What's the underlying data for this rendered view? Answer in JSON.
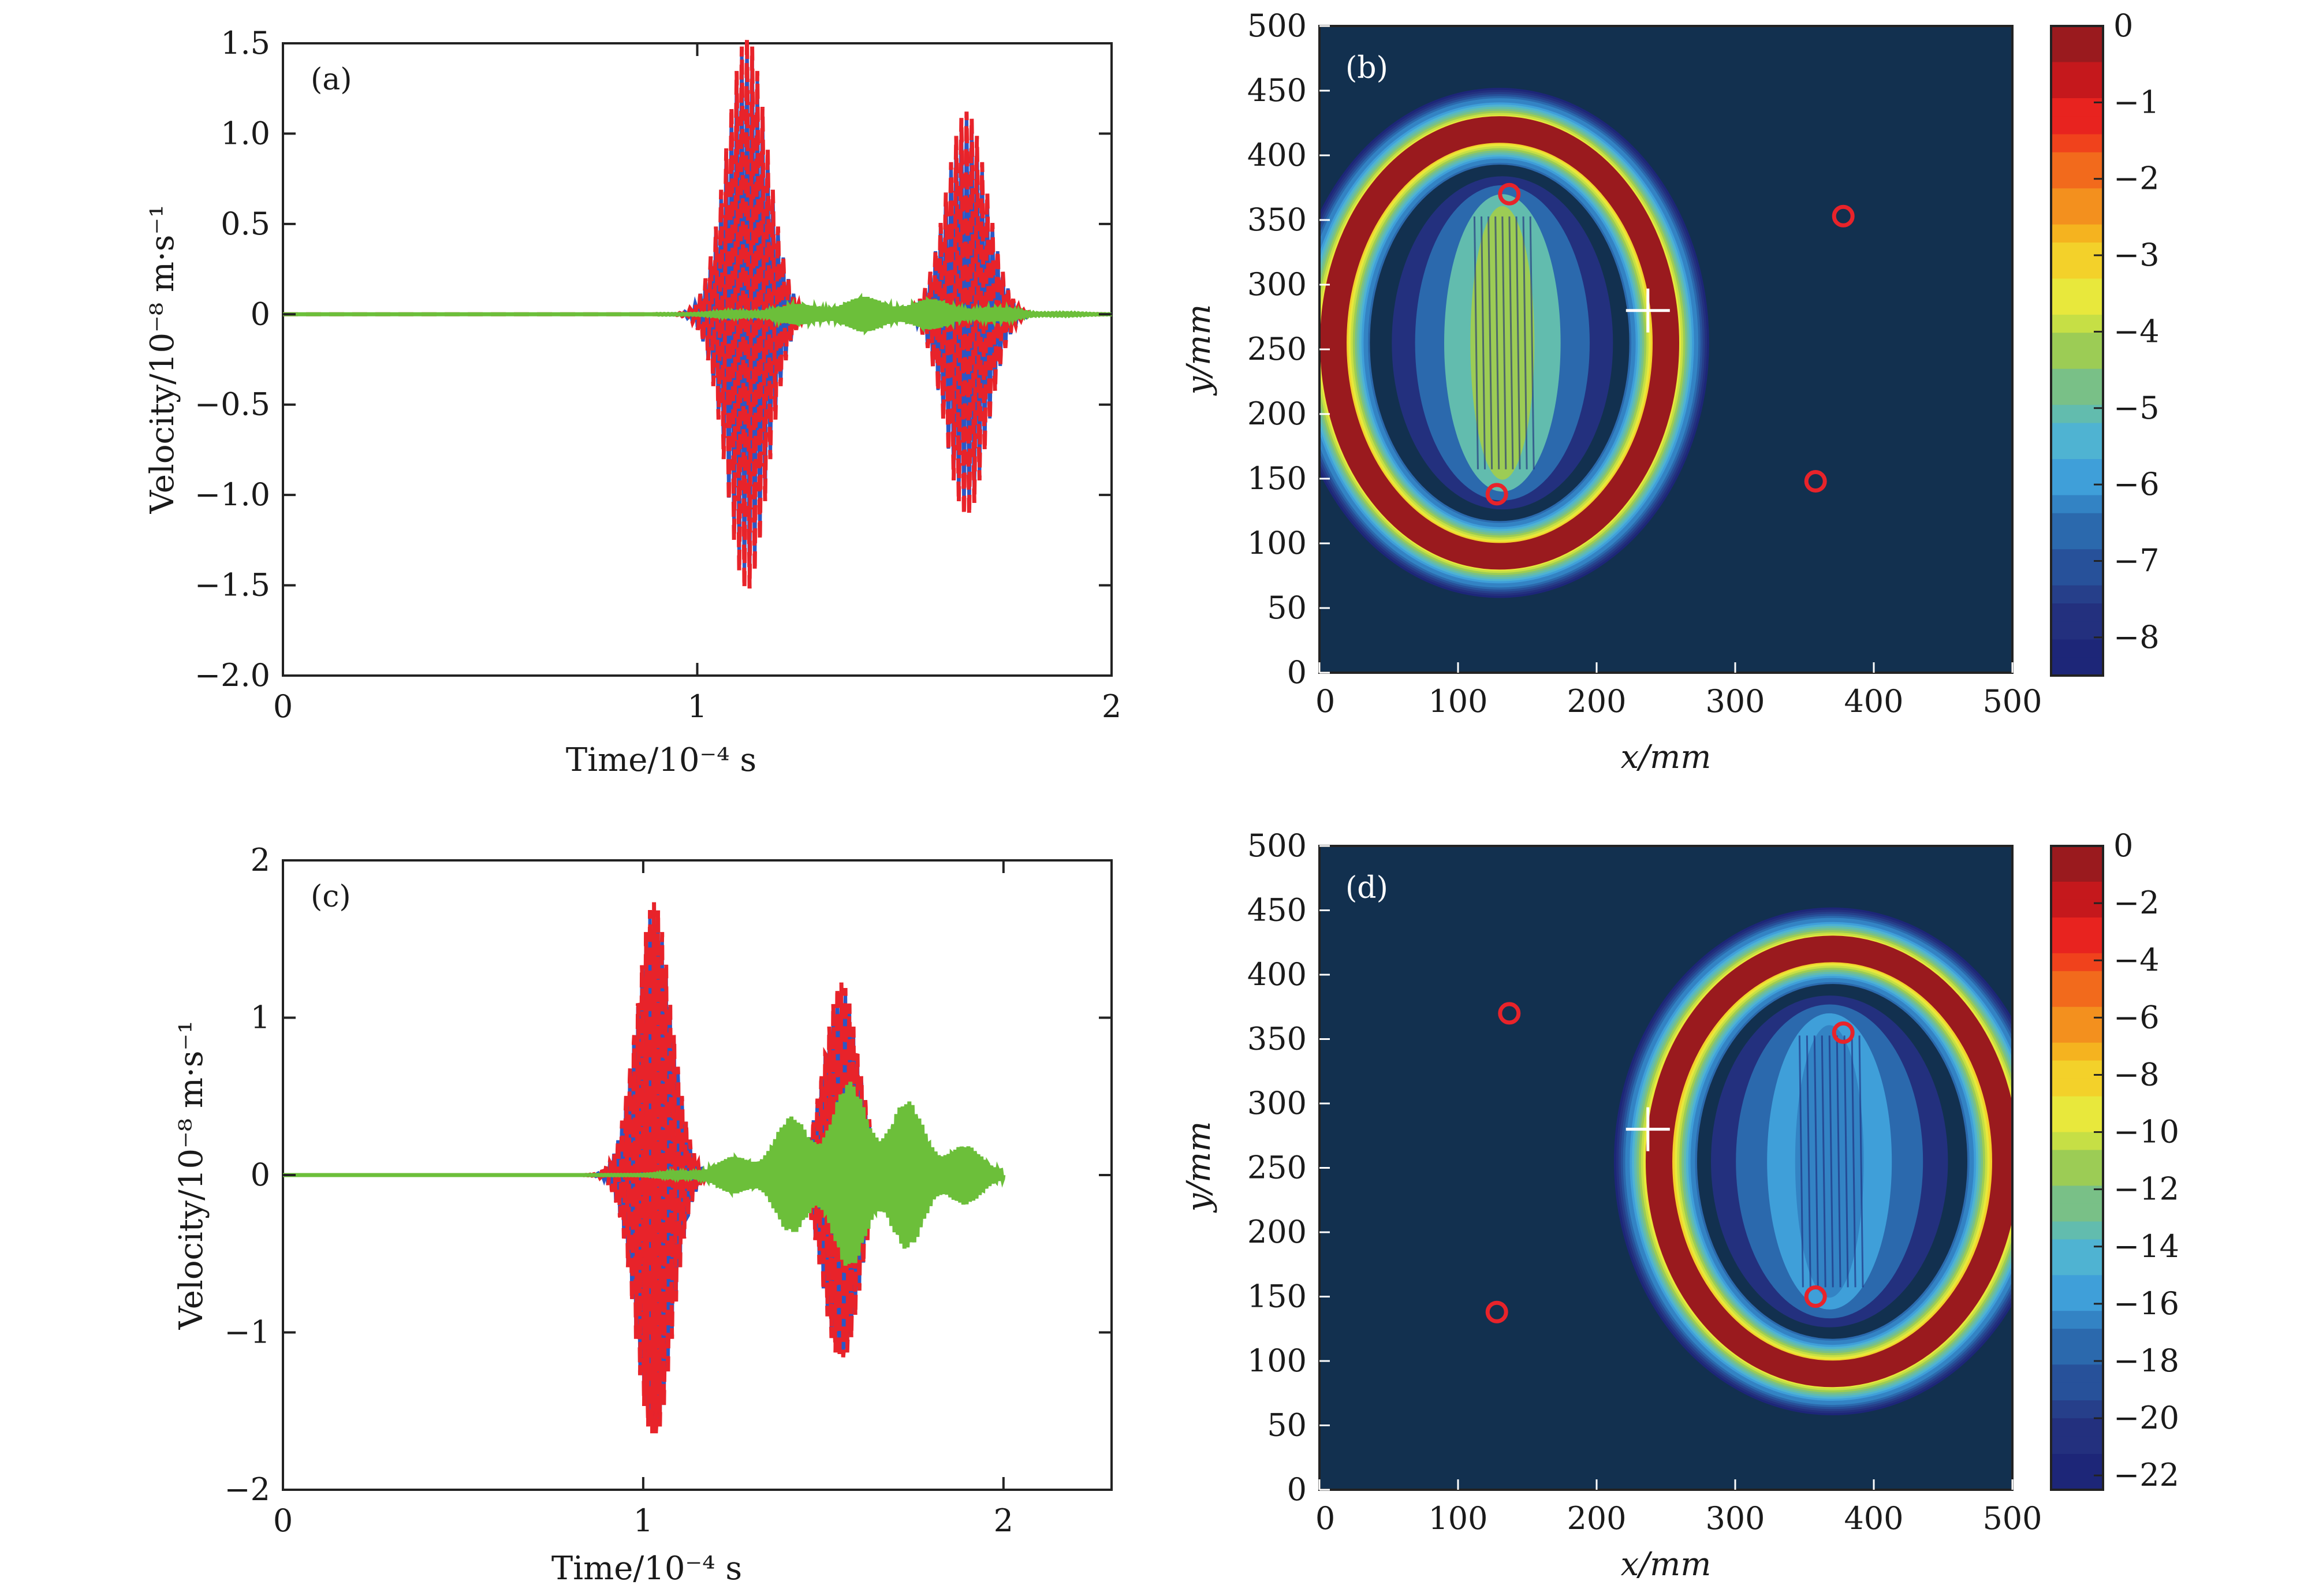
{
  "chart_data": [
    {
      "type": "line",
      "panel_label": "(a)",
      "xlabel": "Time/10⁻⁴ s",
      "ylabel": "Velocity/10⁻⁸ m·s⁻¹",
      "xlim": [
        0,
        2
      ],
      "ylim": [
        -2.0,
        1.5
      ],
      "xticks": [
        0,
        1,
        2
      ],
      "xtick_labels": [
        "0",
        "1",
        "2"
      ],
      "yticks": [
        1.5,
        1.0,
        0.5,
        0,
        -0.5,
        -1.0,
        -1.5,
        -2.0
      ],
      "ytick_labels": [
        "1.5",
        "1.0",
        "0.5",
        "0",
        "−0.5",
        "−1.0",
        "−1.5",
        "−2.0"
      ],
      "colors": {
        "dashed_red": "#e8232a",
        "blue": "#2b57c5",
        "green": "#6cbf3a"
      },
      "packets": [
        {
          "center": 1.12,
          "width": 0.07,
          "amplitude": 1.5,
          "freq": 16
        },
        {
          "center": 1.65,
          "width": 0.07,
          "amplitude": 1.1,
          "freq": 16
        }
      ],
      "green_envelope": {
        "start": 0.9,
        "end": 2.0,
        "amplitude": 0.1
      }
    },
    {
      "type": "heatmap",
      "panel_label": "(b)",
      "xlabel": "x/mm",
      "ylabel": "y/mm",
      "xlim": [
        0,
        500
      ],
      "ylim": [
        0,
        500
      ],
      "xticks": [
        0,
        100,
        200,
        300,
        400,
        500
      ],
      "yticks": [
        0,
        50,
        100,
        150,
        200,
        250,
        300,
        350,
        400,
        450,
        500
      ],
      "colorbar": {
        "min": -8.5,
        "max": 0,
        "ticks": [
          0,
          -1,
          -2,
          -3,
          -4,
          -5,
          -6,
          -7,
          -8
        ],
        "tick_labels": [
          "0",
          "−1",
          "−2",
          "−3",
          "−4",
          "−5",
          "−6",
          "−7",
          "−8"
        ]
      },
      "ellipse": {
        "cx": 130,
        "cy": 255,
        "rx": 120,
        "ry": 165
      },
      "inner_lens": {
        "cx": 132,
        "cy": 255,
        "rx": 42,
        "ry": 115
      },
      "cross_marker": {
        "x": 237,
        "y": 280
      },
      "circle_markers": [
        {
          "x": 137,
          "y": 370
        },
        {
          "x": 128,
          "y": 138
        },
        {
          "x": 378,
          "y": 353
        },
        {
          "x": 358,
          "y": 148
        }
      ]
    },
    {
      "type": "line",
      "panel_label": "(c)",
      "xlabel": "Time/10⁻⁴ s",
      "ylabel": "Velocity/10⁻⁸ m·s⁻¹",
      "xlim": [
        0,
        2.3
      ],
      "ylim": [
        -2,
        2
      ],
      "xticks": [
        0,
        1,
        2
      ],
      "xtick_labels": [
        "0",
        "1",
        "2"
      ],
      "yticks": [
        2,
        1,
        0,
        -1,
        -2
      ],
      "ytick_labels": [
        "2",
        "1",
        "0",
        "−1",
        "−2"
      ],
      "colors": {
        "dashed_red": "#e8232a",
        "blue": "#2b57c5",
        "green": "#6cbf3a"
      },
      "packets": [
        {
          "center": 1.03,
          "width": 0.07,
          "amplitude": 1.7,
          "freq": 18
        },
        {
          "center": 1.55,
          "width": 0.07,
          "amplitude": 1.2,
          "freq": 18
        }
      ],
      "green_envelope": {
        "start": 0.8,
        "end": 2.0,
        "amplitude": 0.6,
        "peak": 1.6
      }
    },
    {
      "type": "heatmap",
      "panel_label": "(d)",
      "xlabel": "x/mm",
      "ylabel": "y/mm",
      "xlim": [
        0,
        500
      ],
      "ylim": [
        0,
        500
      ],
      "xticks": [
        0,
        100,
        200,
        300,
        400,
        500
      ],
      "yticks": [
        0,
        50,
        100,
        150,
        200,
        250,
        300,
        350,
        400,
        450,
        500
      ],
      "colorbar": {
        "min": -22.5,
        "max": 0,
        "ticks": [
          0,
          -2,
          -4,
          -6,
          -8,
          -10,
          -12,
          -14,
          -16,
          -18,
          -20,
          -22
        ],
        "tick_labels": [
          "0",
          "−2",
          "−4",
          "−6",
          "−8",
          "−10",
          "−12",
          "−14",
          "−16",
          "−18",
          "−20",
          "−22"
        ]
      },
      "ellipse": {
        "cx": 370,
        "cy": 255,
        "rx": 125,
        "ry": 165
      },
      "inner_lens": {
        "cx": 368,
        "cy": 255,
        "rx": 45,
        "ry": 115
      },
      "cross_marker": {
        "x": 237,
        "y": 280
      },
      "circle_markers": [
        {
          "x": 137,
          "y": 370
        },
        {
          "x": 128,
          "y": 138
        },
        {
          "x": 378,
          "y": 355
        },
        {
          "x": 358,
          "y": 150
        }
      ]
    }
  ]
}
